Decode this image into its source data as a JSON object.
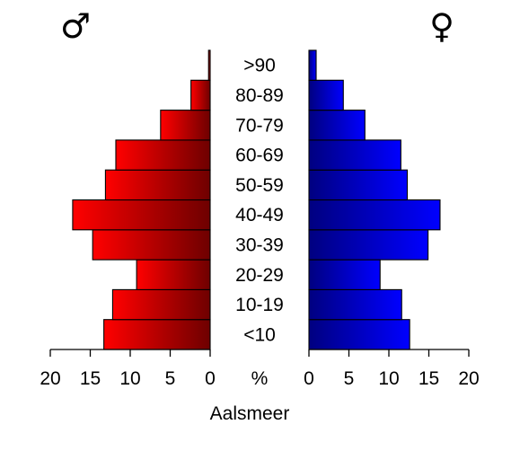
{
  "chart_data": {
    "type": "bar",
    "title": "Aalsmeer",
    "male_symbol": "♂",
    "female_symbol": "♀",
    "unit_label": "%",
    "categories": [
      "<10",
      "10-19",
      "20-29",
      "30-39",
      "40-49",
      "50-59",
      "60-69",
      "70-79",
      "80-89",
      ">90"
    ],
    "series": [
      {
        "name": "♂",
        "color": "#ff0000",
        "values": [
          13.3,
          12.2,
          9.2,
          14.7,
          17.2,
          13.1,
          11.8,
          6.2,
          2.4,
          0.2
        ]
      },
      {
        "name": "♀",
        "color": "#0000ff",
        "values": [
          12.6,
          11.6,
          8.9,
          14.9,
          16.4,
          12.3,
          11.5,
          7.0,
          4.3,
          0.9
        ]
      }
    ],
    "xlim": [
      0,
      20
    ],
    "ticks": [
      "0",
      "5",
      "10",
      "15",
      "20"
    ],
    "orientation": "horizontal",
    "legend": "none"
  }
}
